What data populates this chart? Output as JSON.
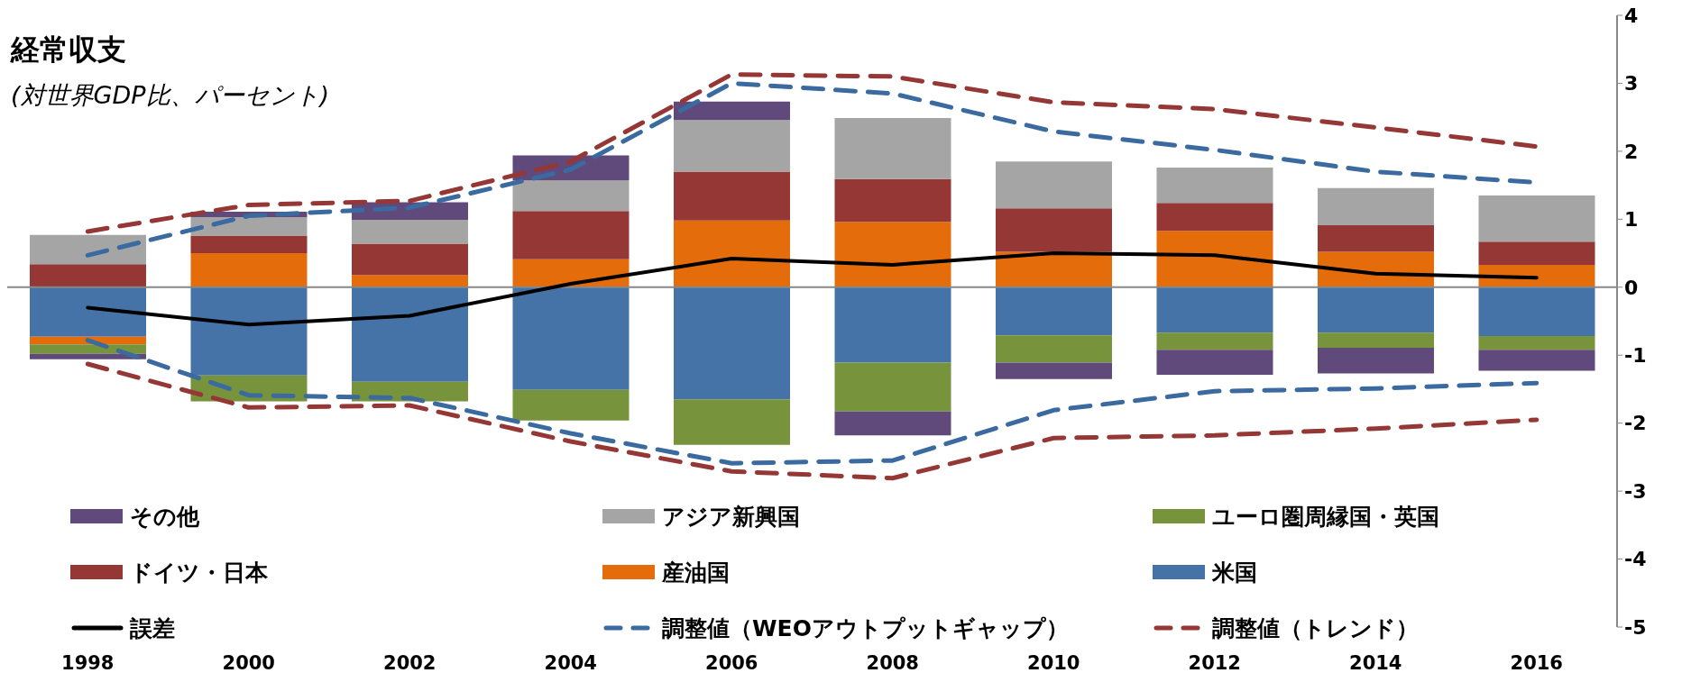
{
  "chart_data": {
    "type": "bar",
    "title": "経常収支",
    "subtitle": "(対世界GDP比、パーセント)",
    "categories": [
      "1998",
      "2000",
      "2002",
      "2004",
      "2006",
      "2008",
      "2010",
      "2012",
      "2014",
      "2016"
    ],
    "stacked": true,
    "series": [
      {
        "name": "米国",
        "color": "#4573a7",
        "values": [
          -0.73,
          -1.3,
          -1.39,
          -1.51,
          -1.65,
          -1.11,
          -0.71,
          -0.67,
          -0.67,
          -0.72
        ]
      },
      {
        "name": "産油国",
        "color": "#e46c0a",
        "values": [
          -0.11,
          0.5,
          0.18,
          0.41,
          0.98,
          0.96,
          0.52,
          0.83,
          0.52,
          0.33
        ]
      },
      {
        "name": "ドイツ・日本",
        "color": "#953735",
        "values": [
          0.34,
          0.26,
          0.46,
          0.71,
          0.72,
          0.63,
          0.64,
          0.41,
          0.39,
          0.34
        ]
      },
      {
        "name": "ユーロ圏周縁国・英国",
        "color": "#77933c",
        "values": [
          -0.14,
          -0.38,
          -0.29,
          -0.45,
          -0.67,
          -0.72,
          -0.4,
          -0.25,
          -0.22,
          -0.2
        ]
      },
      {
        "name": "アジア新興国",
        "color": "#a5a5a5",
        "values": [
          0.43,
          0.27,
          0.35,
          0.45,
          0.76,
          0.9,
          0.69,
          0.52,
          0.55,
          0.68
        ]
      },
      {
        "name": "その他",
        "color": "#604a7b",
        "values": [
          -0.08,
          0.08,
          0.26,
          0.37,
          0.27,
          -0.35,
          -0.24,
          -0.37,
          -0.38,
          -0.31
        ]
      },
      {
        "name": "誤差",
        "type": "line",
        "color": "#000000",
        "line_style": "solid",
        "values": [
          -0.3,
          -0.55,
          -0.42,
          0.05,
          0.42,
          0.33,
          0.5,
          0.47,
          0.2,
          0.14
        ]
      },
      {
        "name": "調整値（WEOアウトプットギャップ）",
        "type": "line",
        "color": "#3a6aa0",
        "line_style": "dashed",
        "values": [
          0.47,
          1.05,
          1.17,
          1.73,
          3.0,
          2.85,
          2.29,
          2.02,
          1.7,
          1.54
        ]
      },
      {
        "name": "調整値（トレンド）",
        "type": "line",
        "color": "#953735",
        "line_style": "dashed",
        "values": [
          0.82,
          1.21,
          1.27,
          1.85,
          3.13,
          3.1,
          2.72,
          2.62,
          2.35,
          2.07
        ]
      },
      {
        "type": "line",
        "color": "#3a6aa0",
        "line_style": "dashed",
        "values": [
          -0.78,
          -1.59,
          -1.63,
          -2.15,
          -2.59,
          -2.55,
          -1.81,
          -1.53,
          -1.49,
          -1.41
        ]
      },
      {
        "type": "line",
        "color": "#953735",
        "line_style": "dashed",
        "values": [
          -1.13,
          -1.77,
          -1.74,
          -2.27,
          -2.71,
          -2.81,
          -2.22,
          -2.18,
          -2.08,
          -1.95
        ]
      }
    ],
    "ylim": [
      -5,
      4
    ],
    "yticks": [
      -5,
      -4,
      -3,
      -2,
      -1,
      0,
      1,
      2,
      3,
      4
    ],
    "legend": "bottom",
    "marker": "none"
  }
}
